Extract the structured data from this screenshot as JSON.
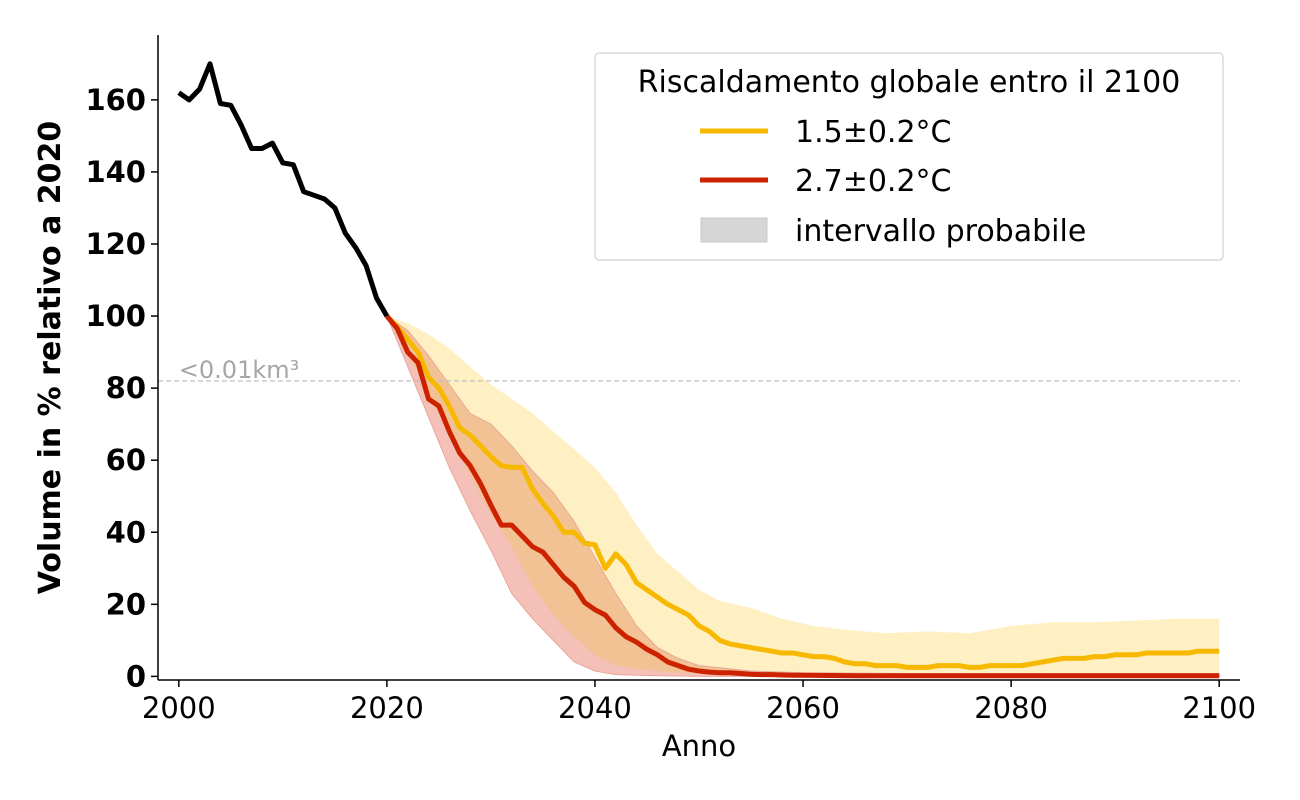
{
  "chart_data": {
    "type": "line",
    "title": "",
    "xlabel": "Anno",
    "ylabel": "Volume in % relativo a 2020",
    "xlim": [
      1998,
      2102
    ],
    "ylim": [
      -1,
      178
    ],
    "x_ticks": [
      "2000",
      "2020",
      "2040",
      "2060",
      "2080",
      "2100"
    ],
    "y_ticks": [
      "0",
      "20",
      "40",
      "60",
      "80",
      "100",
      "120",
      "140",
      "160"
    ],
    "grid": false,
    "legend": {
      "title": "Riscaldamento globale entro il 2100",
      "placement": "top-right",
      "entries": [
        "1.5±0.2°C",
        "2.7±0.2°C",
        "intervallo probabile"
      ]
    },
    "reference_line": {
      "y": 82,
      "label": "<0.01km³",
      "color": "#bbbbbb"
    },
    "colors": {
      "historical": "#000000",
      "ssp_low": "#f7b900",
      "ssp_high": "#cc2200",
      "band_low": "#fff0c4",
      "band_high": "#f4c0b8",
      "band_overlap": "#f2c294",
      "legend_band": "#d6d6d6"
    },
    "series": [
      {
        "key": "historical",
        "x": [
          2000,
          2001,
          2002,
          2003,
          2004,
          2005,
          2006,
          2007,
          2008,
          2009,
          2010,
          2011,
          2012,
          2013,
          2014,
          2015,
          2016,
          2017,
          2018,
          2019,
          2020
        ],
        "values": [
          162,
          160,
          163,
          170,
          159,
          158.5,
          153,
          146.5,
          146.5,
          148,
          142.5,
          142,
          134.5,
          133.5,
          132.5,
          130,
          123,
          119,
          114,
          105,
          100
        ]
      },
      {
        "key": "ssp_low",
        "name": "1.5±0.2°C",
        "x": [
          2020,
          2021,
          2022,
          2023,
          2024,
          2025,
          2026,
          2027,
          2028,
          2029,
          2030,
          2031,
          2032,
          2033,
          2034,
          2035,
          2036,
          2037,
          2038,
          2039,
          2040,
          2041,
          2042,
          2043,
          2044,
          2045,
          2046,
          2047,
          2048,
          2049,
          2050,
          2051,
          2052,
          2053,
          2054,
          2055,
          2056,
          2057,
          2058,
          2059,
          2060,
          2061,
          2062,
          2063,
          2064,
          2065,
          2066,
          2067,
          2068,
          2069,
          2070,
          2071,
          2072,
          2073,
          2074,
          2075,
          2076,
          2077,
          2078,
          2079,
          2080,
          2081,
          2082,
          2083,
          2084,
          2085,
          2086,
          2087,
          2088,
          2089,
          2090,
          2091,
          2092,
          2093,
          2094,
          2095,
          2096,
          2097,
          2098,
          2099,
          2100
        ],
        "values": [
          100,
          97,
          93.5,
          90,
          83,
          80,
          75,
          69,
          67,
          64,
          61,
          58.5,
          58,
          58,
          52,
          48,
          44.5,
          40,
          40,
          37,
          36.5,
          30,
          34,
          31,
          26,
          24,
          22,
          20,
          18.5,
          17,
          14,
          12.5,
          10,
          9,
          8.5,
          8,
          7.5,
          7,
          6.5,
          6.5,
          6,
          5.5,
          5.5,
          5,
          4,
          3.5,
          3.5,
          3,
          3,
          3,
          2.5,
          2.5,
          2.5,
          3,
          3,
          3,
          2.5,
          2.5,
          3,
          3,
          3,
          3,
          3.5,
          4,
          4.5,
          5,
          5,
          5,
          5.5,
          5.5,
          6,
          6,
          6,
          6.5,
          6.5,
          6.5,
          6.5,
          6.5,
          7,
          7,
          7
        ]
      },
      {
        "key": "ssp_high",
        "name": "2.7±0.2°C",
        "x": [
          2020,
          2021,
          2022,
          2023,
          2024,
          2025,
          2026,
          2027,
          2028,
          2029,
          2030,
          2031,
          2032,
          2033,
          2034,
          2035,
          2036,
          2037,
          2038,
          2039,
          2040,
          2041,
          2042,
          2043,
          2044,
          2045,
          2046,
          2047,
          2048,
          2049,
          2050,
          2051,
          2052,
          2053,
          2054,
          2055,
          2056,
          2057,
          2058,
          2059,
          2060,
          2065,
          2070,
          2075,
          2080,
          2085,
          2090,
          2095,
          2100
        ],
        "values": [
          100,
          96.5,
          90,
          87,
          77,
          75,
          68,
          62,
          58.5,
          53.5,
          47.5,
          42,
          42,
          39,
          36,
          34.5,
          31,
          27.5,
          25,
          20.5,
          18.5,
          17,
          13.5,
          11,
          9.5,
          7.5,
          6,
          4,
          3,
          2,
          1.5,
          1.2,
          1,
          1,
          0.8,
          0.6,
          0.5,
          0.5,
          0.4,
          0.3,
          0.3,
          0.2,
          0.2,
          0.2,
          0.2,
          0.2,
          0.2,
          0.2,
          0.2
        ]
      }
    ],
    "bands": [
      {
        "key": "band_low",
        "x": [
          2020,
          2022,
          2024,
          2026,
          2028,
          2030,
          2032,
          2034,
          2036,
          2038,
          2040,
          2042,
          2044,
          2046,
          2048,
          2050,
          2052,
          2055,
          2058,
          2061,
          2064,
          2068,
          2072,
          2076,
          2080,
          2084,
          2088,
          2092,
          2096,
          2100
        ],
        "upper": [
          100,
          98,
          95,
          91,
          86,
          81,
          77,
          73,
          68,
          63,
          58,
          51,
          42,
          34,
          29,
          24,
          21,
          19,
          16,
          14,
          13,
          12,
          12.5,
          12,
          14,
          15,
          15,
          15.5,
          16,
          16
        ],
        "lower": [
          100,
          90,
          78,
          67,
          56,
          45,
          36,
          25,
          17,
          11,
          6,
          3,
          2,
          1.5,
          1,
          0.8,
          0.6,
          0.6,
          0.5,
          0.5,
          0.5,
          0.5,
          0.5,
          0.5,
          0.5,
          0.5,
          0.5,
          0.5,
          0.5,
          0.5
        ]
      },
      {
        "key": "band_high",
        "x": [
          2020,
          2022,
          2024,
          2026,
          2028,
          2030,
          2032,
          2034,
          2036,
          2038,
          2040,
          2042,
          2044,
          2046,
          2048,
          2050,
          2055,
          2060,
          2070,
          2080,
          2090,
          2100
        ],
        "upper": [
          100,
          96,
          89,
          81,
          73,
          70,
          64,
          57,
          51,
          43,
          33,
          23,
          14,
          8,
          5,
          3,
          1.5,
          1,
          0.8,
          0.8,
          0.8,
          0.8
        ],
        "lower": [
          100,
          86,
          72,
          58,
          46,
          35,
          23,
          16,
          10,
          4,
          1.5,
          0.5,
          0.3,
          0.2,
          0.1,
          0,
          0,
          0,
          0,
          0,
          0,
          0
        ]
      }
    ]
  }
}
